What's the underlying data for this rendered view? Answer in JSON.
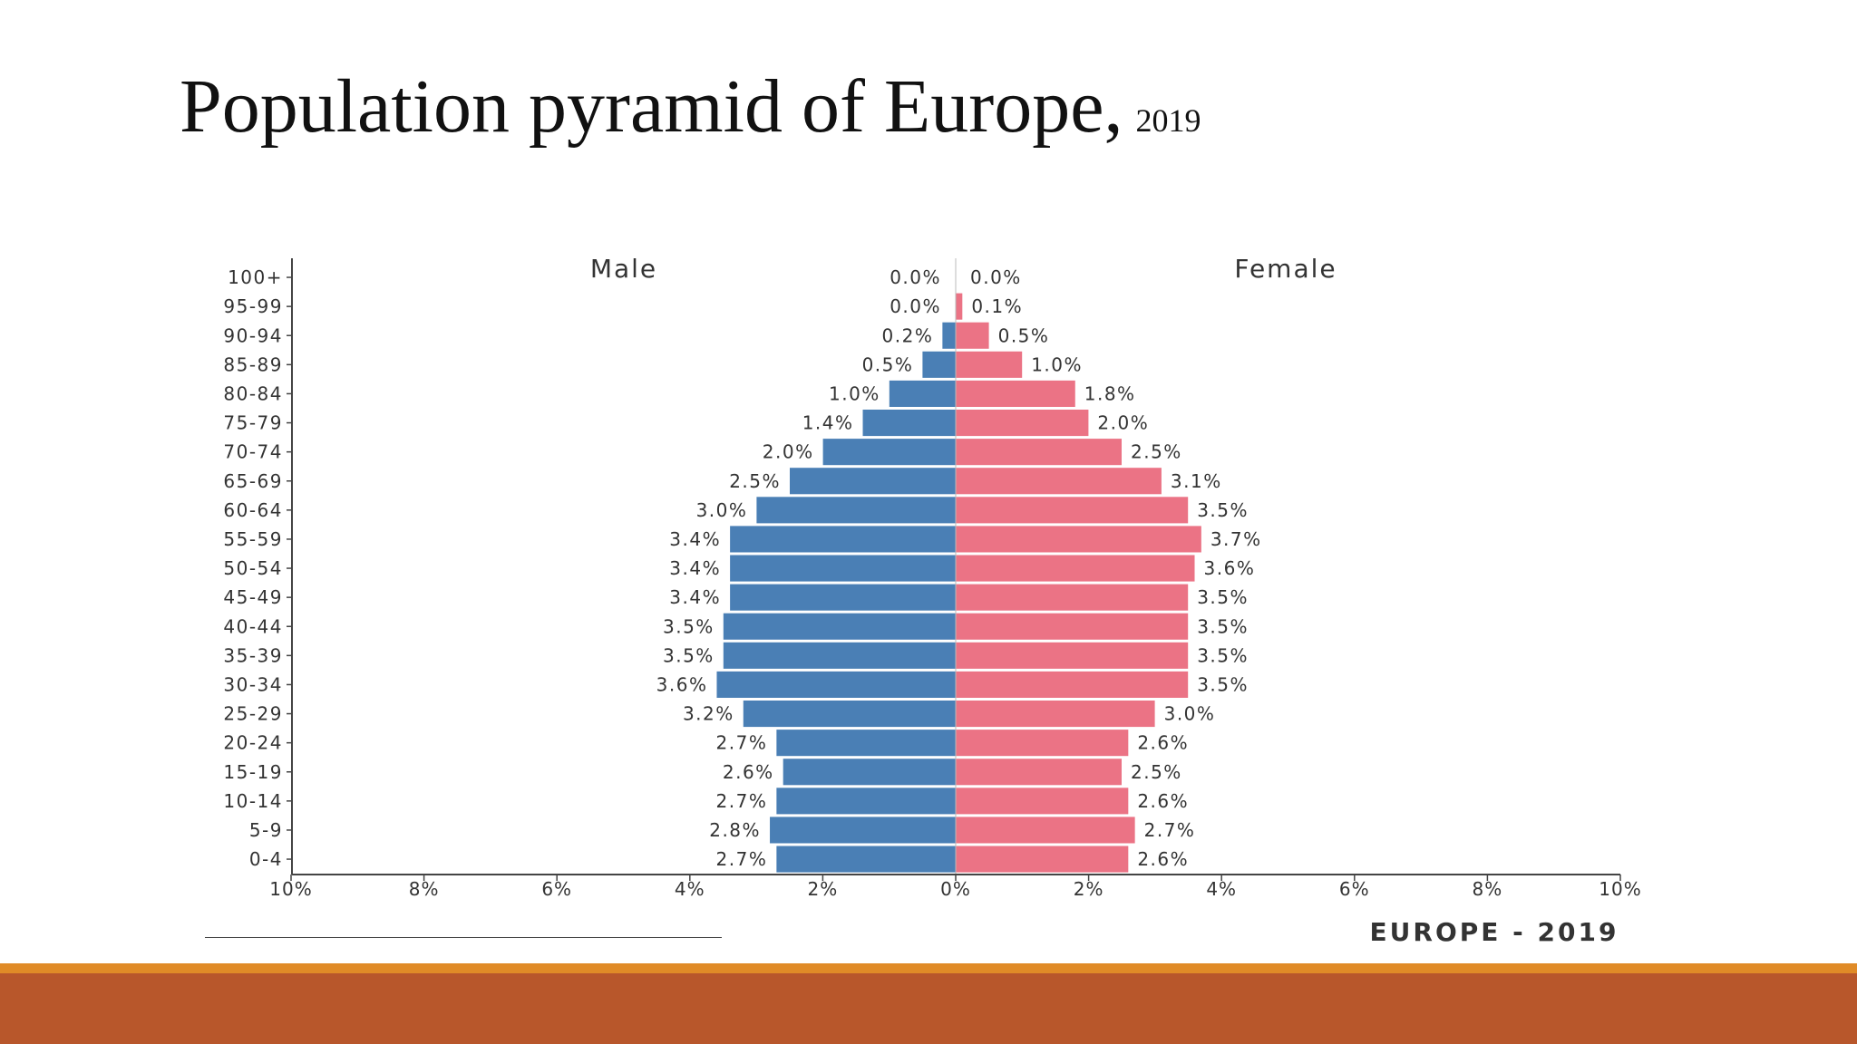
{
  "slide": {
    "title": "Population pyramid of Europe,",
    "title_year": "2019"
  },
  "colors": {
    "male": "#4a7fb5",
    "female": "#eb7385",
    "axis": "#444444",
    "text": "#333333",
    "stripe_orange": "#e08b27",
    "band_rust": "#b8572b"
  },
  "chart_data": {
    "type": "bar",
    "orientation": "horizontal-pyramid",
    "title": "EUROPE - 2019",
    "left_label": "Male",
    "right_label": "Female",
    "categories": [
      "100+",
      "95-99",
      "90-94",
      "85-89",
      "80-84",
      "75-79",
      "70-74",
      "65-69",
      "60-64",
      "55-59",
      "50-54",
      "45-49",
      "40-44",
      "35-39",
      "30-34",
      "25-29",
      "20-24",
      "15-19",
      "10-14",
      "5-9",
      "0-4"
    ],
    "series": [
      {
        "name": "Male",
        "values": [
          0.0,
          0.0,
          0.2,
          0.5,
          1.0,
          1.4,
          2.0,
          2.5,
          3.0,
          3.4,
          3.4,
          3.4,
          3.5,
          3.5,
          3.6,
          3.2,
          2.7,
          2.6,
          2.7,
          2.8,
          2.7
        ],
        "labels": [
          "0.0%",
          "0.0%",
          "0.2%",
          "0.5%",
          "1.0%",
          "1.4%",
          "2.0%",
          "2.5%",
          "3.0%",
          "3.4%",
          "3.4%",
          "3.4%",
          "3.5%",
          "3.5%",
          "3.6%",
          "3.2%",
          "2.7%",
          "2.6%",
          "2.7%",
          "2.8%",
          "2.7%"
        ]
      },
      {
        "name": "Female",
        "values": [
          0.0,
          0.1,
          0.5,
          1.0,
          1.8,
          2.0,
          2.5,
          3.1,
          3.5,
          3.7,
          3.6,
          3.5,
          3.5,
          3.5,
          3.5,
          3.0,
          2.6,
          2.5,
          2.6,
          2.7,
          2.6
        ],
        "labels": [
          "0.0%",
          "0.1%",
          "0.5%",
          "1.0%",
          "1.8%",
          "2.0%",
          "2.5%",
          "3.1%",
          "3.5%",
          "3.7%",
          "3.6%",
          "3.5%",
          "3.5%",
          "3.5%",
          "3.5%",
          "3.0%",
          "2.6%",
          "2.5%",
          "2.6%",
          "2.7%",
          "2.6%"
        ]
      }
    ],
    "xlim": [
      -10,
      10
    ],
    "x_ticks": [
      -10,
      -8,
      -6,
      -4,
      -2,
      0,
      2,
      4,
      6,
      8,
      10
    ],
    "x_tick_labels": [
      "10%",
      "8%",
      "6%",
      "4%",
      "2%",
      "0%",
      "2%",
      "4%",
      "6%",
      "8%",
      "10%"
    ],
    "grid": false
  }
}
